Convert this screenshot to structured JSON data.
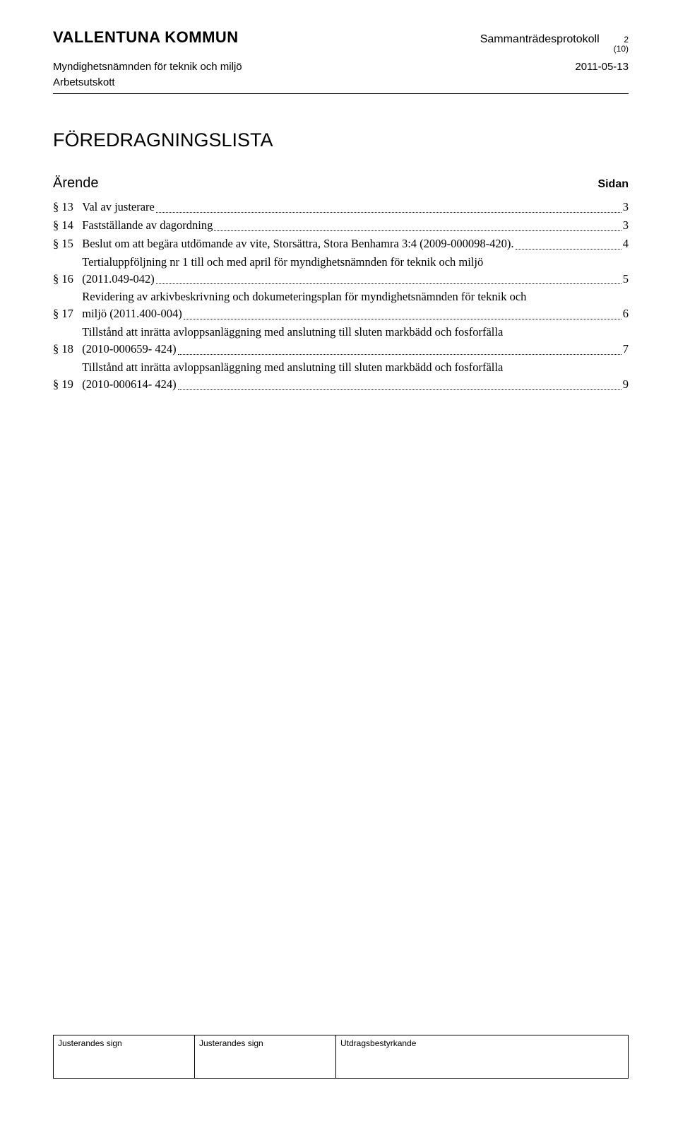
{
  "header": {
    "kommun": "VALLENTUNA KOMMUN",
    "docType": "Sammanträdesprotokoll",
    "pageNum": "2",
    "pageTotal": "(10)",
    "committee": "Myndighetsnämnden för teknik och miljö",
    "subcommittee": "Arbetsutskott",
    "date": "2011-05-13"
  },
  "title": "FÖREDRAGNINGSLISTA",
  "arendeLabel": "Ärende",
  "sidanLabel": "Sidan",
  "toc": [
    {
      "num": "§ 13",
      "text": "Val av justerare",
      "page": "3"
    },
    {
      "num": "§ 14",
      "text": "Fastställande av dagordning",
      "page": "3"
    },
    {
      "num": "§ 15",
      "text": "Beslut om att begära utdömande av vite, Storsättra, Stora Benhamra 3:4 (2009-000098-420).",
      "page": "4"
    },
    {
      "num": "§ 16",
      "textLines": [
        "Tertialuppföljning nr 1 till och med april för myndighetsnämnden för teknik och miljö",
        "(2011.049-042)"
      ],
      "page": "5"
    },
    {
      "num": "§ 17",
      "textLines": [
        "Revidering av arkivbeskrivning och dokumeteringsplan för myndighetsnämnden för teknik och",
        "miljö (2011.400-004)"
      ],
      "page": "6"
    },
    {
      "num": "§ 18",
      "textLines": [
        "Tillstånd att inrätta avloppsanläggning med anslutning till sluten markbädd och fosforfälla",
        "(2010-000659- 424)"
      ],
      "page": "7"
    },
    {
      "num": "§ 19",
      "textLines": [
        "Tillstånd att inrätta avloppsanläggning med anslutning till sluten markbädd och fosforfälla",
        "(2010-000614- 424)"
      ],
      "page": "9"
    }
  ],
  "footer": {
    "sign1": "Justerandes sign",
    "sign2": "Justerandes sign",
    "cert": "Utdragsbestyrkande"
  }
}
